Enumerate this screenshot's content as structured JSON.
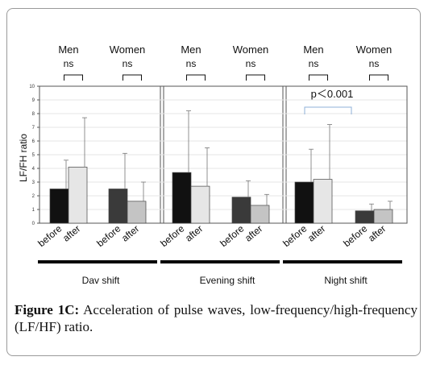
{
  "chart_data": {
    "type": "bar",
    "ylabel": "LF/FH ratio",
    "ylim": [
      0,
      10
    ],
    "yticks": [
      "0",
      "1",
      "2",
      "3",
      "4",
      "5",
      "6",
      "7",
      "8",
      "9",
      "10"
    ],
    "colors": {
      "men_before": "#111111",
      "men_after": "#e6e6e6",
      "women_before": "#3a3a3a",
      "women_after": "#c4c4c4",
      "bracket": "#8fb0d8"
    },
    "panels": [
      {
        "shift": "Dav shift",
        "groups": [
          {
            "label": "Men",
            "sig": "ns",
            "bars": [
              {
                "label": "before",
                "value": 2.5,
                "error": 2.1
              },
              {
                "label": "after",
                "value": 4.1,
                "error": 3.6
              }
            ]
          },
          {
            "label": "Women",
            "sig": "ns",
            "bars": [
              {
                "label": "before",
                "value": 2.5,
                "error": 2.6
              },
              {
                "label": "after",
                "value": 1.6,
                "error": 1.4
              }
            ]
          }
        ]
      },
      {
        "shift": "Evening shift",
        "groups": [
          {
            "label": "Men",
            "sig": "ns",
            "bars": [
              {
                "label": "before",
                "value": 3.7,
                "error": 4.5
              },
              {
                "label": "after",
                "value": 2.7,
                "error": 2.8
              }
            ]
          },
          {
            "label": "Women",
            "sig": "ns",
            "bars": [
              {
                "label": "before",
                "value": 1.9,
                "error": 1.2
              },
              {
                "label": "after",
                "value": 1.3,
                "error": 0.8
              }
            ]
          }
        ]
      },
      {
        "shift": "Night shift",
        "annotation": "p＜0.001",
        "groups": [
          {
            "label": "Men",
            "sig": "ns",
            "bars": [
              {
                "label": "before",
                "value": 3.0,
                "error": 2.4
              },
              {
                "label": "after",
                "value": 3.2,
                "error": 4.0
              }
            ]
          },
          {
            "label": "Women",
            "sig": "ns",
            "bars": [
              {
                "label": "before",
                "value": 0.9,
                "error": 0.5
              },
              {
                "label": "after",
                "value": 1.0,
                "error": 0.6
              }
            ]
          }
        ]
      }
    ]
  },
  "caption": {
    "label": "Figure 1C:",
    "text": "Acceleration of pulse waves, low-frequency/high-frequency (LF/HF) ratio."
  }
}
